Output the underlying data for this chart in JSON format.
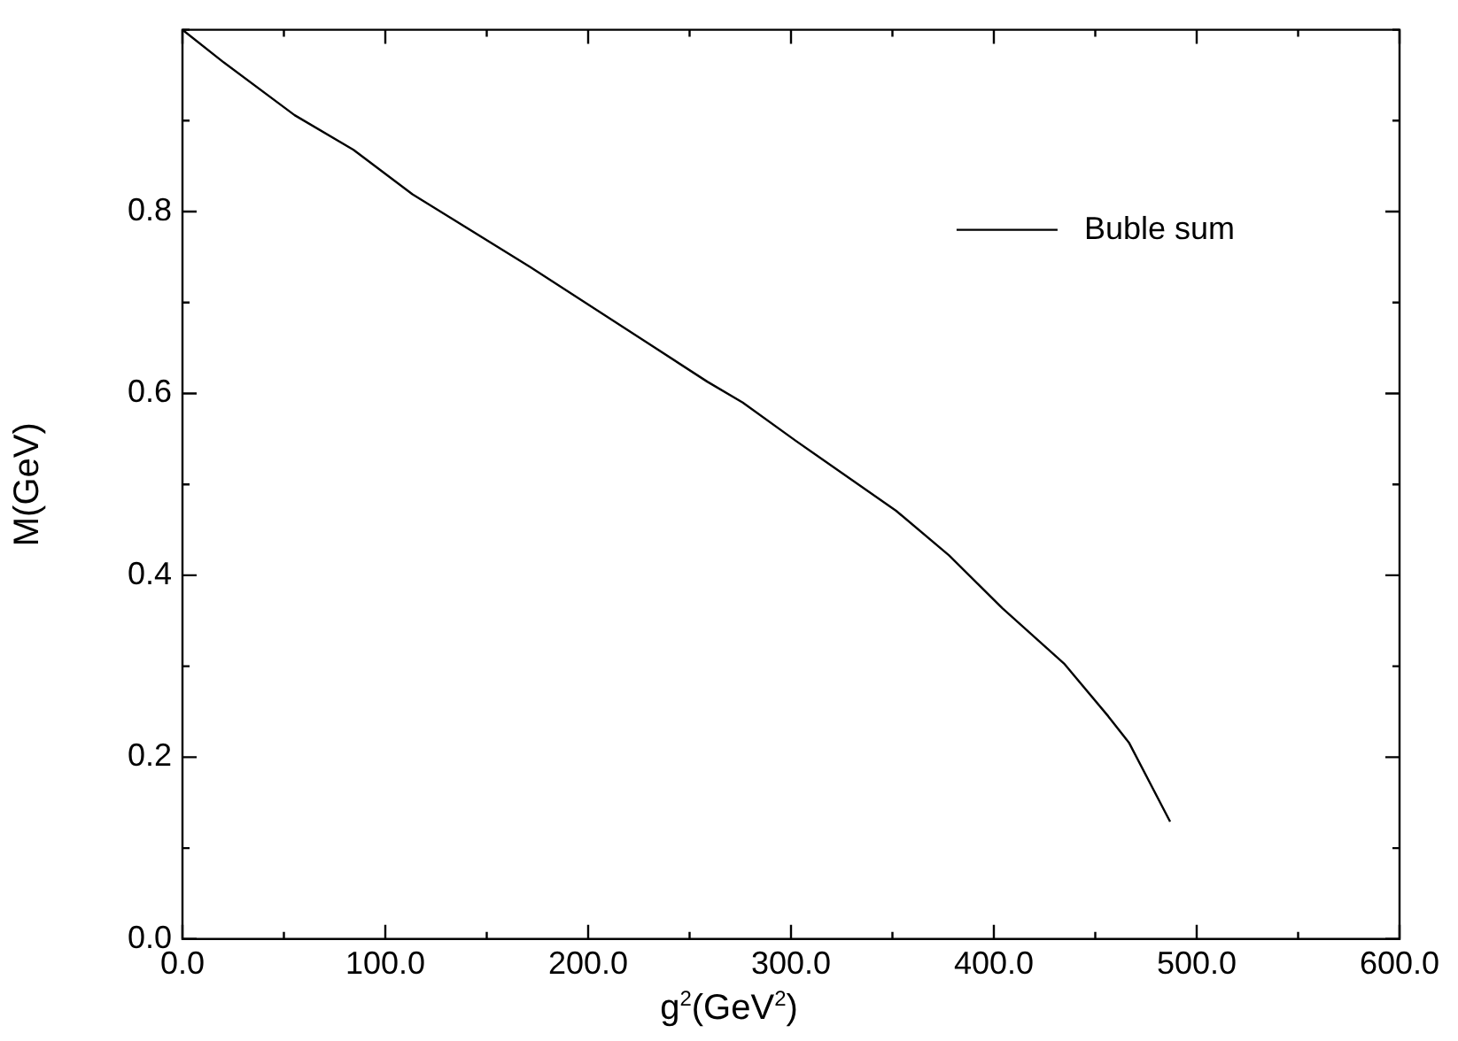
{
  "chart_data": {
    "type": "line",
    "xlabel": "g$^{2}$(GeV$^{2}$)",
    "ylabel": "M(GeV)",
    "legend": "top right",
    "grid": false,
    "marker": "none",
    "line_style": "solid",
    "xlim": [
      0,
      600
    ],
    "ylim": [
      0,
      1.0
    ],
    "xticks": [
      {
        "value": 0,
        "label": "0.0"
      },
      {
        "value": 50,
        "label": null
      },
      {
        "value": 100,
        "label": "100.0"
      },
      {
        "value": 150,
        "label": null
      },
      {
        "value": 200,
        "label": "200.0"
      },
      {
        "value": 250,
        "label": null
      },
      {
        "value": 300,
        "label": "300.0"
      },
      {
        "value": 350,
        "label": null
      },
      {
        "value": 400,
        "label": "400.0"
      },
      {
        "value": 450,
        "label": null
      },
      {
        "value": 500,
        "label": "500.0"
      },
      {
        "value": 550,
        "label": null
      },
      {
        "value": 600,
        "label": "600.0"
      }
    ],
    "yticks": [
      {
        "value": 0,
        "label": "0.0"
      },
      {
        "value": 0.1,
        "label": null
      },
      {
        "value": 0.2,
        "label": "0.2"
      },
      {
        "value": 0.3,
        "label": null
      },
      {
        "value": 0.4,
        "label": "0.4"
      },
      {
        "value": 0.5,
        "label": null
      },
      {
        "value": 0.6,
        "label": "0.6"
      },
      {
        "value": 0.7,
        "label": null
      },
      {
        "value": 0.8,
        "label": "0.8"
      },
      {
        "value": 0.9,
        "label": null
      },
      {
        "value": 1.0,
        "label": null
      }
    ],
    "series": [
      {
        "name": "Buble sum",
        "color": "#000000",
        "x": [
          0,
          20.4,
          55.3,
          84.3,
          113.4,
          171.5,
          229.7,
          258.7,
          276.2,
          302.3,
          351.8,
          377.9,
          404.1,
          434.6,
          456.4,
          466.6,
          486.9
        ],
        "values": [
          1.0,
          0.964,
          0.906,
          0.868,
          0.819,
          0.739,
          0.655,
          0.613,
          0.59,
          0.548,
          0.471,
          0.422,
          0.364,
          0.303,
          0.245,
          0.216,
          0.129
        ]
      }
    ]
  }
}
